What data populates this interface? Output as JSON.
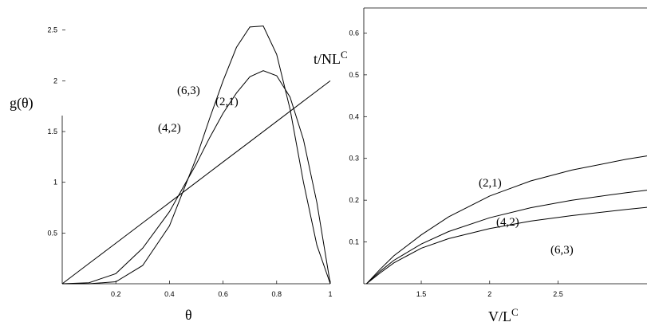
{
  "chart_data": [
    {
      "type": "line",
      "xlabel": "θ",
      "ylabel": "g(θ)",
      "xlim": [
        0,
        1
      ],
      "ylim": [
        0,
        2.6
      ],
      "x_ticks": [
        "0.2",
        "0.4",
        "0.6",
        "0.8",
        "1"
      ],
      "x_tick_values": [
        0.2,
        0.4,
        0.6,
        0.8,
        1.0
      ],
      "y_ticks": [
        "0.5",
        "1",
        "1.5",
        "2",
        "2.5"
      ],
      "y_tick_values": [
        0.5,
        1.0,
        1.5,
        2.0,
        2.5
      ],
      "series": [
        {
          "name": "(2,1)",
          "x": [
            0,
            0.1,
            0.2,
            0.3,
            0.4,
            0.5,
            0.6,
            0.7,
            0.8,
            0.9,
            1.0
          ],
          "y": [
            0,
            0.2,
            0.4,
            0.6,
            0.8,
            1.0,
            1.2,
            1.4,
            1.6,
            1.8,
            2.0
          ]
        },
        {
          "name": "(4,2)",
          "x": [
            0,
            0.1,
            0.2,
            0.3,
            0.4,
            0.5,
            0.55,
            0.6,
            0.65,
            0.7,
            0.75,
            0.8,
            0.85,
            0.9,
            0.95,
            1.0
          ],
          "y": [
            0,
            0.01,
            0.1,
            0.35,
            0.71,
            1.18,
            1.44,
            1.68,
            1.88,
            2.04,
            2.1,
            2.05,
            1.84,
            1.42,
            0.8,
            0
          ]
        },
        {
          "name": "(6,3)",
          "x": [
            0,
            0.1,
            0.2,
            0.3,
            0.4,
            0.5,
            0.55,
            0.6,
            0.65,
            0.7,
            0.75,
            0.8,
            0.85,
            0.9,
            0.95,
            1.0
          ],
          "y": [
            0,
            0,
            0.02,
            0.18,
            0.57,
            1.24,
            1.63,
            2.0,
            2.33,
            2.53,
            2.54,
            2.26,
            1.72,
            1.0,
            0.38,
            0
          ]
        }
      ]
    },
    {
      "type": "line",
      "xlabel": "V/L",
      "xlabel_sup": "C",
      "ylabel": "t/NL",
      "ylabel_sup": "C",
      "xlim": [
        1.08,
        3.15
      ],
      "ylim": [
        0,
        0.66
      ],
      "x_ticks": [
        "1.5",
        "2",
        "2.5"
      ],
      "x_tick_values": [
        1.5,
        2.0,
        2.5
      ],
      "y_ticks": [
        "0.1",
        "0.2",
        "0.3",
        "0.4",
        "0.5",
        "0.6"
      ],
      "y_tick_values": [
        0.1,
        0.2,
        0.3,
        0.4,
        0.5,
        0.6
      ],
      "series": [
        {
          "name": "(2,1)",
          "x": [
            1.1,
            1.2,
            1.3,
            1.5,
            1.7,
            2.0,
            2.3,
            2.6,
            3.0,
            3.15
          ],
          "y": [
            0,
            0.035,
            0.067,
            0.117,
            0.16,
            0.21,
            0.246,
            0.272,
            0.298,
            0.306
          ]
        },
        {
          "name": "(4,2)",
          "x": [
            1.1,
            1.2,
            1.3,
            1.5,
            1.7,
            2.0,
            2.3,
            2.6,
            3.0,
            3.15
          ],
          "y": [
            0,
            0.03,
            0.056,
            0.095,
            0.125,
            0.158,
            0.182,
            0.2,
            0.218,
            0.224
          ]
        },
        {
          "name": "(6,3)",
          "x": [
            1.1,
            1.2,
            1.3,
            1.5,
            1.7,
            2.0,
            2.3,
            2.6,
            3.0,
            3.15
          ],
          "y": [
            0,
            0.026,
            0.05,
            0.085,
            0.108,
            0.132,
            0.15,
            0.163,
            0.178,
            0.183
          ]
        }
      ]
    }
  ]
}
